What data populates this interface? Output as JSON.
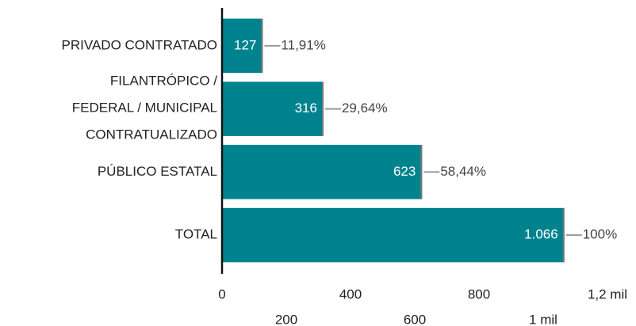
{
  "chart_data": {
    "type": "hbar",
    "categories": [
      "PRIVADO CONTRATADO",
      "FILANTRÓPICO /\nFEDERAL / MUNICIPAL\nCONTRATUALIZADO",
      "PÚBLICO ESTATAL",
      "TOTAL"
    ],
    "values": [
      127,
      316,
      623,
      1066
    ],
    "value_labels": [
      "127",
      "316",
      "623",
      "1.066"
    ],
    "percentages": [
      11.91,
      29.64,
      58.44,
      100
    ],
    "percentage_labels": [
      "11,91%",
      "29,64%",
      "58,44%",
      "100%"
    ],
    "color": "#00838f",
    "xlim": [
      0,
      1200
    ],
    "xticks": [
      0,
      200,
      400,
      600,
      800,
      {
        "value": 1000,
        "label": "1 mil"
      },
      {
        "value": 1200,
        "label": "1,2 mil"
      }
    ]
  }
}
